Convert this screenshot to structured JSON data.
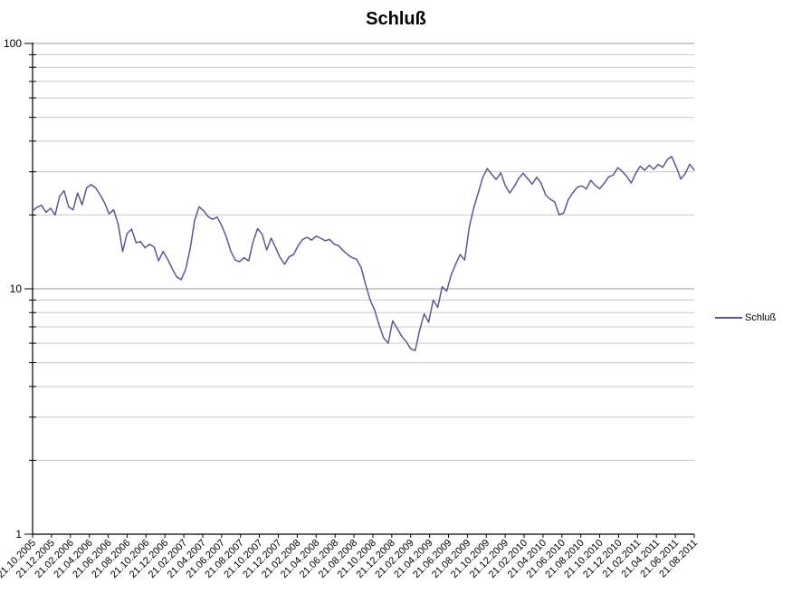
{
  "chart_title": "Schluß",
  "legend": {
    "label": "Schluß"
  },
  "colors": {
    "series": "#5b5891",
    "grid_minor": "#c9c9c9",
    "grid_major": "#9b9b9b",
    "axis": "#000000",
    "text": "#000000"
  },
  "chart_data": {
    "type": "line",
    "title": "Schluß",
    "legend_entries": [
      "Schluß"
    ],
    "legend_position": "right",
    "grid": true,
    "y_scale": "log",
    "ylim": [
      1,
      100
    ],
    "y_major_ticks": [
      1,
      10,
      100
    ],
    "y_minor_gridlines": [
      2,
      3,
      4,
      5,
      6,
      7,
      8,
      9,
      20,
      30,
      40,
      50,
      60,
      70,
      80,
      90
    ],
    "x_tick_labels": [
      "21.10.2005",
      "21.12.2005",
      "21.02.2006",
      "21.04.2006",
      "21.06.2006",
      "21.08.2006",
      "21.10.2006",
      "21.12.2006",
      "21.02.2007",
      "21.04.2007",
      "21.06.2007",
      "21.08.2007",
      "21.10.2007",
      "21.12.2007",
      "21.02.2008",
      "21.04.2008",
      "21.06.2008",
      "21.08.2008",
      "21.10.2008",
      "21.12.2008",
      "21.02.2009",
      "21.04.2009",
      "21.06.2009",
      "21.08.2009",
      "21.10.2009",
      "21.12.2009",
      "21.02.2010",
      "21.04.2010",
      "21.06.2010",
      "21.08.2010",
      "21.10.2010",
      "21.12.2010",
      "21.02.2011",
      "21.04.2011",
      "21.06.2011",
      "21.08.2011"
    ],
    "series": [
      {
        "name": "Schluß",
        "x_range": [
          "21.10.2005",
          "21.08.2011"
        ],
        "values": [
          20.8,
          21.5,
          21.9,
          20.5,
          21.3,
          20.0,
          23.8,
          25.1,
          21.6,
          21.0,
          24.6,
          22.0,
          25.8,
          26.6,
          25.8,
          24.2,
          22.4,
          20.2,
          21.0,
          18.4,
          14.2,
          16.8,
          17.5,
          15.4,
          15.6,
          14.7,
          15.2,
          14.8,
          13.0,
          14.2,
          13.2,
          12.1,
          11.2,
          10.9,
          12.0,
          14.5,
          19.0,
          21.6,
          20.8,
          19.7,
          19.2,
          19.6,
          18.1,
          16.4,
          14.3,
          13.1,
          12.9,
          13.4,
          13.0,
          15.6,
          17.6,
          16.7,
          14.4,
          16.1,
          14.7,
          13.4,
          12.6,
          13.5,
          13.8,
          15.0,
          15.9,
          16.2,
          15.8,
          16.4,
          16.1,
          15.7,
          15.9,
          15.2,
          15.0,
          14.3,
          13.8,
          13.4,
          13.2,
          12.2,
          10.4,
          9.0,
          8.2,
          7.1,
          6.3,
          6.0,
          7.4,
          6.9,
          6.4,
          6.1,
          5.7,
          5.6,
          6.8,
          7.9,
          7.3,
          9.0,
          8.4,
          10.2,
          9.8,
          11.4,
          12.6,
          13.8,
          13.1,
          17.8,
          21.3,
          24.6,
          28.4,
          30.9,
          29.3,
          27.9,
          29.7,
          26.4,
          24.6,
          26.1,
          28.2,
          29.6,
          28.1,
          26.7,
          28.5,
          26.9,
          24.1,
          23.2,
          22.6,
          20.0,
          20.4,
          23.1,
          24.6,
          25.9,
          26.3,
          25.5,
          27.7,
          26.4,
          25.6,
          26.9,
          28.6,
          29.1,
          31.2,
          30.1,
          28.7,
          27.0,
          29.6,
          31.6,
          30.4,
          31.9,
          30.7,
          32.1,
          31.3,
          33.6,
          34.6,
          31.4,
          28.0,
          29.5,
          32.2,
          30.5
        ]
      }
    ]
  }
}
